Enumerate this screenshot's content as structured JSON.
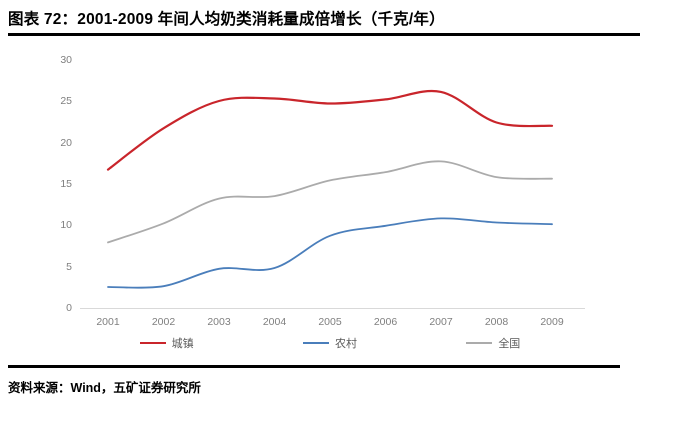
{
  "header": {
    "title": "图表 72：2001-2009 年间人均奶类消耗量成倍增长（千克/年）"
  },
  "footer": {
    "source": "资料来源：Wind，五矿证券研究所"
  },
  "style": {
    "axis_line_color": "#d9d9d9",
    "tick_text_color": "#7f7f7f",
    "legend_text_color": "#595959",
    "rule_color": "#000000"
  },
  "chart_data": {
    "type": "line",
    "title": "",
    "xlabel": "",
    "ylabel": "",
    "x": [
      2001,
      2002,
      2003,
      2004,
      2005,
      2006,
      2007,
      2008,
      2009
    ],
    "series": [
      {
        "name": "城镇",
        "color": "#c9252b",
        "values": [
          16.8,
          21.8,
          25.1,
          25.4,
          24.8,
          25.3,
          26.2,
          22.5,
          22.1
        ]
      },
      {
        "name": "农村",
        "color": "#4a7ebb",
        "values": [
          2.6,
          2.7,
          4.8,
          4.9,
          8.8,
          10.0,
          10.9,
          10.4,
          10.2
        ]
      },
      {
        "name": "全国",
        "color": "#ababab",
        "values": [
          8.0,
          10.3,
          13.3,
          13.6,
          15.5,
          16.5,
          17.8,
          15.9,
          15.7
        ]
      }
    ],
    "ylim": [
      0,
      30
    ],
    "yticks": [
      0,
      5,
      10,
      15,
      20,
      25,
      30
    ],
    "grid": false,
    "line_style": "smooth",
    "legend_position": "bottom"
  }
}
